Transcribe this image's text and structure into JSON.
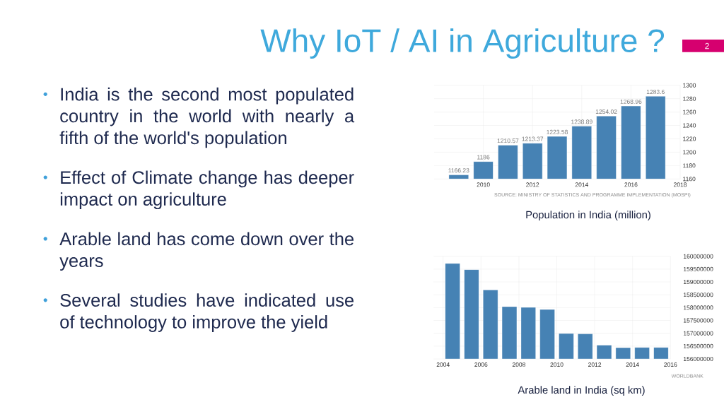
{
  "chart_data": [
    {
      "type": "other",
      "title": "Why IoT / AI in Agriculture ?",
      "annotations": [
        "India is the second most populated country in the world with nearly a fifth of the world's population",
        "Effect of Climate change has deeper impact on agriculture",
        "Arable land has come down over the years",
        "Several studies have indicated use of technology to improve the yield",
        "2"
      ]
    },
    {
      "type": "bar",
      "x": [
        2009,
        2010,
        2011,
        2012,
        2013,
        2014,
        2015,
        2016,
        2017
      ],
      "values": [
        1166.23,
        1186,
        1210.57,
        1213.37,
        1223.58,
        1238.89,
        1254.02,
        1268.96,
        1283.6
      ],
      "color": "#4682b4",
      "data_labels": true,
      "xlim": [
        2008,
        2018
      ],
      "xticks": [
        2010,
        2012,
        2014,
        2016,
        2018
      ],
      "ylim": [
        1160,
        1300
      ],
      "yticks": [
        1160,
        1180,
        1200,
        1220,
        1240,
        1260,
        1280,
        1300
      ],
      "grid": true,
      "annotations": [
        "SOURCE: MINISTRY OF STATISTICS AND PROGRAMME IMPLEMENTATION (MOSPI)",
        "Population in India (million)"
      ]
    },
    {
      "type": "bar",
      "x": [
        2004.5,
        2005.5,
        2006.5,
        2007.5,
        2008.5,
        2009.5,
        2010.5,
        2011.5,
        2012.5,
        2013.5,
        2014.5,
        2015.5
      ],
      "values": [
        159720000,
        159480000,
        158690000,
        158040000,
        158010000,
        157930000,
        156990000,
        156980000,
        156540000,
        156440000,
        156450000,
        156450000
      ],
      "color": "#4682b4",
      "xlim": [
        2003.5,
        2016
      ],
      "xticks": [
        2004,
        2006,
        2008,
        2010,
        2012,
        2014,
        2016
      ],
      "ylim": [
        156000000,
        160000000
      ],
      "yticks": [
        156000000,
        156500000,
        157000000,
        157500000,
        158000000,
        158500000,
        159000000,
        159500000,
        160000000
      ],
      "grid": true,
      "annotations": [
        "WORLDBANK",
        "Arable land in India (sq km)"
      ]
    }
  ]
}
